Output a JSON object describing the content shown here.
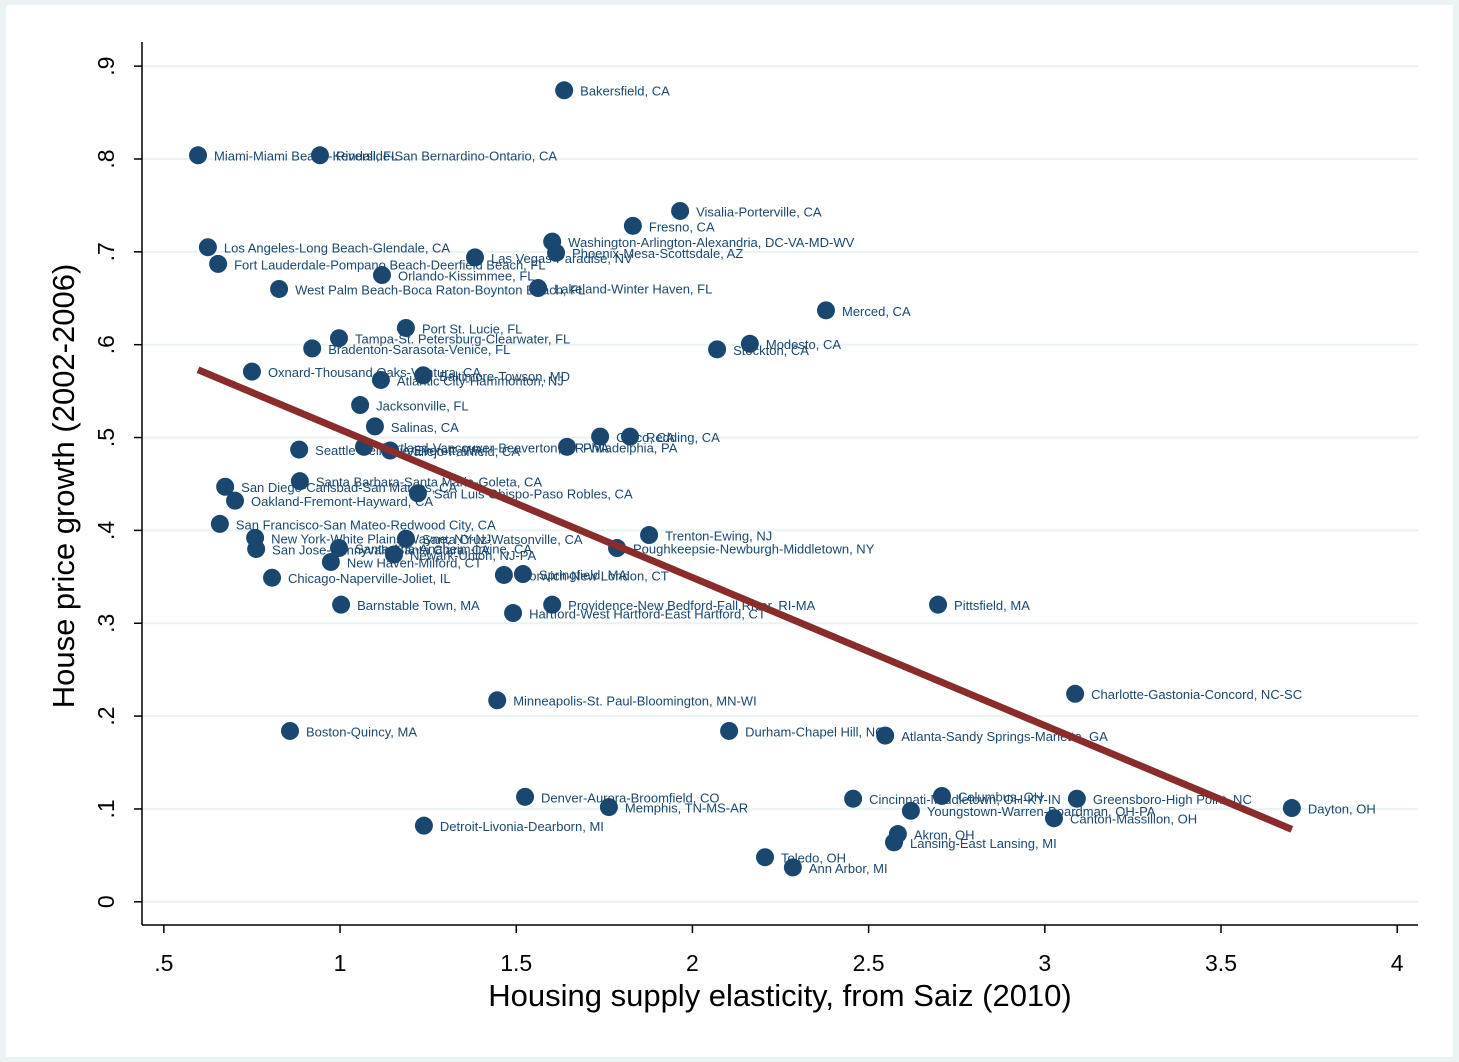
{
  "chart_data": {
    "type": "scatter",
    "x_label": "Housing supply elasticity, from Saiz (2010)",
    "y_label": "House price growth (2002-2006)",
    "xlim": [
      0.438,
      4.059
    ],
    "ylim": [
      -0.025,
      0.926
    ],
    "xticks": [
      {
        "value": 0.5,
        "label": ".5"
      },
      1,
      1.5,
      2,
      2.5,
      3,
      3.5,
      4
    ],
    "yticks": [
      0,
      {
        "value": 0.1,
        "label": ".1"
      },
      {
        "value": 0.2,
        "label": ".2"
      },
      {
        "value": 0.3,
        "label": ".3"
      },
      {
        "value": 0.4,
        "label": ".4"
      },
      {
        "value": 0.5,
        "label": ".5"
      },
      {
        "value": 0.6,
        "label": ".6"
      },
      {
        "value": 0.7,
        "label": ".7"
      },
      {
        "value": 0.8,
        "label": ".8"
      },
      {
        "value": 0.9,
        "label": ".9"
      }
    ],
    "grid": true,
    "color": "#1a476f",
    "point_labels": [
      "Bakersfield, CA",
      "Miami-Miami Beach-Kendall, FL",
      "Riverside-San Bernardino-Ontario, CA",
      "Visalia-Porterville, CA",
      "Fresno, CA",
      "Washington-Arlington-Alexandria, DC-VA-MD-WV",
      "Phoenix-Mesa-Scottsdale, AZ",
      "Los Angeles-Long Beach-Glendale, CA",
      "Las Vegas-Paradise, NV",
      "Fort Lauderdale-Pompano Beach-Deerfield Beach, FL",
      "Orlando-Kissimmee, FL",
      "West Palm Beach-Boca Raton-Boynton Beach, FL",
      "Lakeland-Winter Haven, FL",
      "Merced, CA",
      "Port St. Lucie, FL",
      "Tampa-St. Petersburg-Clearwater, FL",
      "Bradenton-Sarasota-Venice, FL",
      "Modesto, CA",
      "Stockton, CA",
      "Oxnard-Thousand Oaks-Ventura, CA",
      "Baltimore-Towson, MD",
      "Atlantic City-Hammonton, NJ",
      "Jacksonville, FL",
      "Salinas, CA",
      "Seattle-Bellevue-Everett, WA",
      "Portland-Vancouver-Beaverton, OR-WA",
      "Vallejo-Fairfield, CA",
      "Philadelphia, PA",
      "Chico, CA",
      "Redding, CA",
      "Santa Barbara-Santa Maria-Goleta, CA",
      "San Diego-Carlsbad-San Marcos, CA",
      "San Luis Obispo-Paso Robles, CA",
      "Oakland-Fremont-Hayward, CA",
      "San Francisco-San Mateo-Redwood City, CA",
      "New York-White Plains-Wayne, NY-NJ",
      "Santa Cruz-Watsonville, CA",
      "Trenton-Ewing, NJ",
      "San Jose-Sunnyvale-Santa Clara, CA",
      "Santa Ana-Anaheim-Irvine, CA",
      "Newark-Union, NJ-PA",
      "Poughkeepsie-Newburgh-Middletown, NY",
      "New Haven-Milford, CT",
      "Chicago-Naperville-Joliet, IL",
      "Springfield, MA",
      "Norwich-New London, CT",
      "Barnstable Town, MA",
      "Providence-New Bedford-Fall River, RI-MA",
      "Hartford-West Hartford-East Hartford, CT",
      "Pittsfield, MA",
      "Charlotte-Gastonia-Concord, NC-SC",
      "Minneapolis-St. Paul-Bloomington, MN-WI",
      "Boston-Quincy, MA",
      "Durham-Chapel Hill, NC",
      "Atlanta-Sandy Springs-Marietta, GA",
      "Denver-Aurora-Broomfield, CO",
      "Memphis, TN-MS-AR",
      "Cincinnati-Middletown, OH-KY-IN",
      "Columbus, OH",
      "Greensboro-High Point, NC",
      "Youngstown-Warren-Boardman, OH-PA",
      "Canton-Massillon, OH",
      "Dayton, OH",
      "Detroit-Livonia-Dearborn, MI",
      "Akron, OH",
      "Lansing-East Lansing, MI",
      "Toledo, OH",
      "Ann Arbor, MI"
    ],
    "x": [
      1.636,
      0.597,
      0.943,
      1.965,
      1.831,
      1.602,
      1.613,
      0.625,
      1.383,
      0.654,
      1.119,
      0.827,
      1.562,
      2.379,
      1.187,
      0.997,
      0.921,
      2.163,
      2.07,
      0.75,
      1.236,
      1.116,
      1.057,
      1.099,
      0.884,
      1.068,
      1.142,
      1.644,
      1.738,
      1.823,
      0.886,
      0.674,
      1.221,
      0.702,
      0.659,
      0.759,
      1.187,
      1.877,
      0.762,
      0.997,
      1.153,
      1.786,
      0.974,
      0.807,
      1.519,
      1.465,
      1.003,
      1.602,
      1.491,
      2.697,
      3.086,
      1.446,
      0.858,
      2.104,
      2.547,
      1.525,
      1.763,
      2.456,
      2.708,
      3.091,
      2.62,
      3.026,
      3.701,
      1.238,
      2.583,
      2.572,
      2.206,
      2.285
    ],
    "values": [
      0.874,
      0.804,
      0.804,
      0.744,
      0.728,
      0.711,
      0.699,
      0.705,
      0.694,
      0.687,
      0.675,
      0.66,
      0.661,
      0.637,
      0.618,
      0.607,
      0.596,
      0.601,
      0.595,
      0.571,
      0.567,
      0.562,
      0.535,
      0.512,
      0.487,
      0.49,
      0.486,
      0.49,
      0.501,
      0.501,
      0.453,
      0.447,
      0.44,
      0.432,
      0.407,
      0.392,
      0.391,
      0.395,
      0.38,
      0.381,
      0.374,
      0.381,
      0.366,
      0.349,
      0.353,
      0.352,
      0.32,
      0.32,
      0.311,
      0.32,
      0.224,
      0.217,
      0.184,
      0.184,
      0.179,
      0.113,
      0.102,
      0.111,
      0.114,
      0.111,
      0.098,
      0.09,
      0.101,
      0.082,
      0.073,
      0.064,
      0.048,
      0.037
    ],
    "fit_line": {
      "x": [
        0.597,
        3.701
      ],
      "y": [
        0.573,
        0.078
      ],
      "color": "#8b2c2c"
    }
  }
}
